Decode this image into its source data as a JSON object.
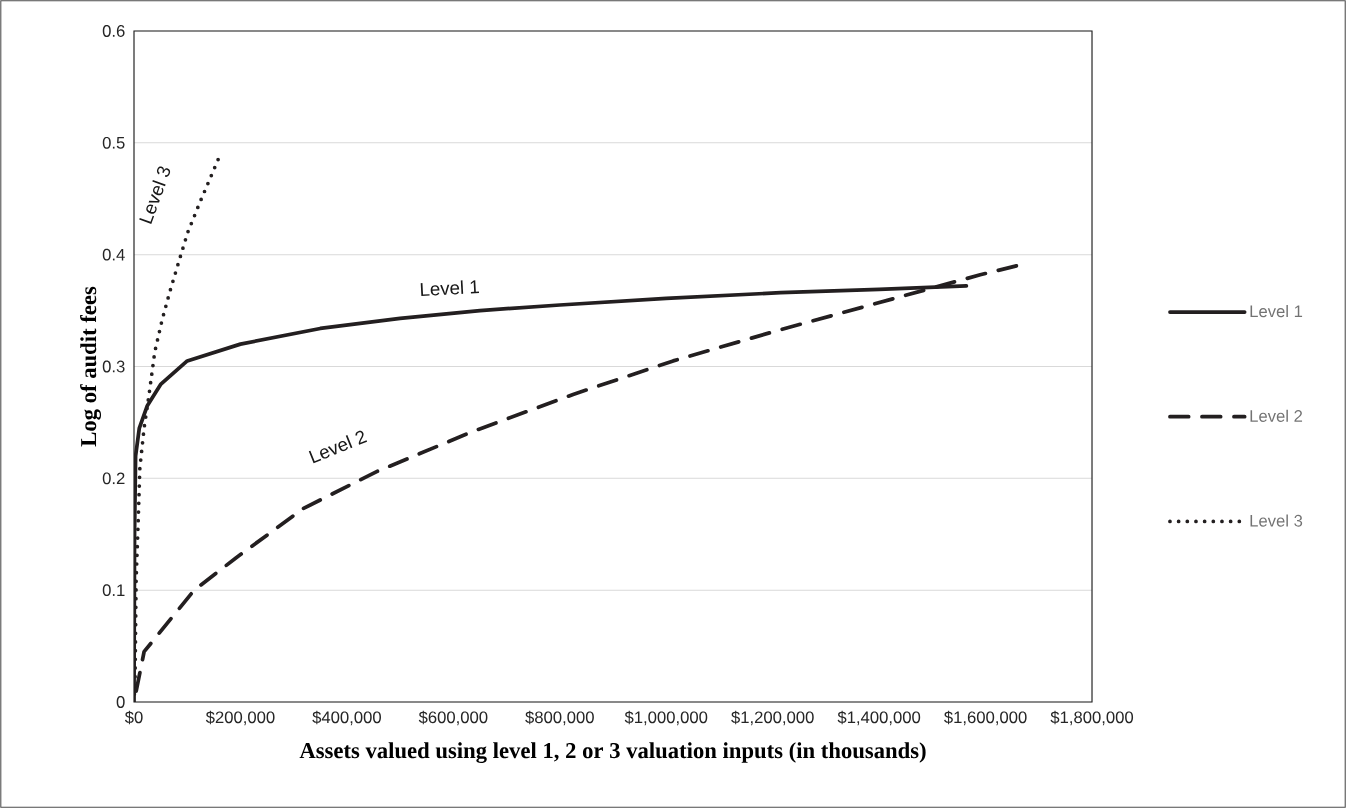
{
  "chart_data": {
    "type": "line",
    "xlabel": "Assets valued using level 1, 2 or 3 valuation inputs (in thousands)",
    "ylabel": "Log of audit fees",
    "xlim": [
      0,
      1800000
    ],
    "ylim": [
      0,
      0.6
    ],
    "xticks": [
      {
        "value": 0,
        "label": "$0"
      },
      {
        "value": 200000,
        "label": "$200,000"
      },
      {
        "value": 400000,
        "label": "$400,000"
      },
      {
        "value": 600000,
        "label": "$600,000"
      },
      {
        "value": 800000,
        "label": "$800,000"
      },
      {
        "value": 1000000,
        "label": "$1,000,000"
      },
      {
        "value": 1200000,
        "label": "$1,200,000"
      },
      {
        "value": 1400000,
        "label": "$1,400,000"
      },
      {
        "value": 1600000,
        "label": "$1,600,000"
      },
      {
        "value": 1800000,
        "label": "$1,800,000"
      }
    ],
    "yticks": [
      0,
      0.1,
      0.2,
      0.3,
      0.4,
      0.5,
      0.6
    ],
    "grid": "y",
    "legend": "right",
    "series": [
      {
        "name": "Level 1",
        "color": "#231f20",
        "line_style": "solid",
        "x": [
          0,
          1000,
          3000,
          10000,
          25000,
          50000,
          100000,
          200000,
          350000,
          500000,
          650000,
          800000,
          1000000,
          1215000,
          1400000,
          1564000
        ],
        "values": [
          0,
          0.15,
          0.22,
          0.245,
          0.265,
          0.284,
          0.305,
          0.32,
          0.334,
          0.343,
          0.35,
          0.355,
          0.361,
          0.366,
          0.369,
          0.372
        ]
      },
      {
        "name": "Level 2",
        "color": "#231f20",
        "line_style": "dashed",
        "x": [
          0,
          19000,
          113000,
          192000,
          318000,
          456000,
          637000,
          825000,
          1013000,
          1208000,
          1590000,
          1658000
        ],
        "values": [
          0,
          0.045,
          0.1,
          0.129,
          0.173,
          0.206,
          0.242,
          0.275,
          0.305,
          0.332,
          0.382,
          0.39
        ]
      },
      {
        "name": "Level 3",
        "color": "#231f20",
        "line_style": "dotted",
        "x": [
          0,
          2000,
          4000,
          8000,
          11000,
          19000,
          28000,
          39000,
          53000,
          68000,
          85000,
          101000,
          124000,
          158000
        ],
        "values": [
          0,
          0.02,
          0.109,
          0.163,
          0.209,
          0.245,
          0.274,
          0.313,
          0.342,
          0.368,
          0.395,
          0.42,
          0.447,
          0.485
        ]
      }
    ],
    "annotations": [
      "Level 1",
      "Level 2",
      "Level 3"
    ]
  }
}
